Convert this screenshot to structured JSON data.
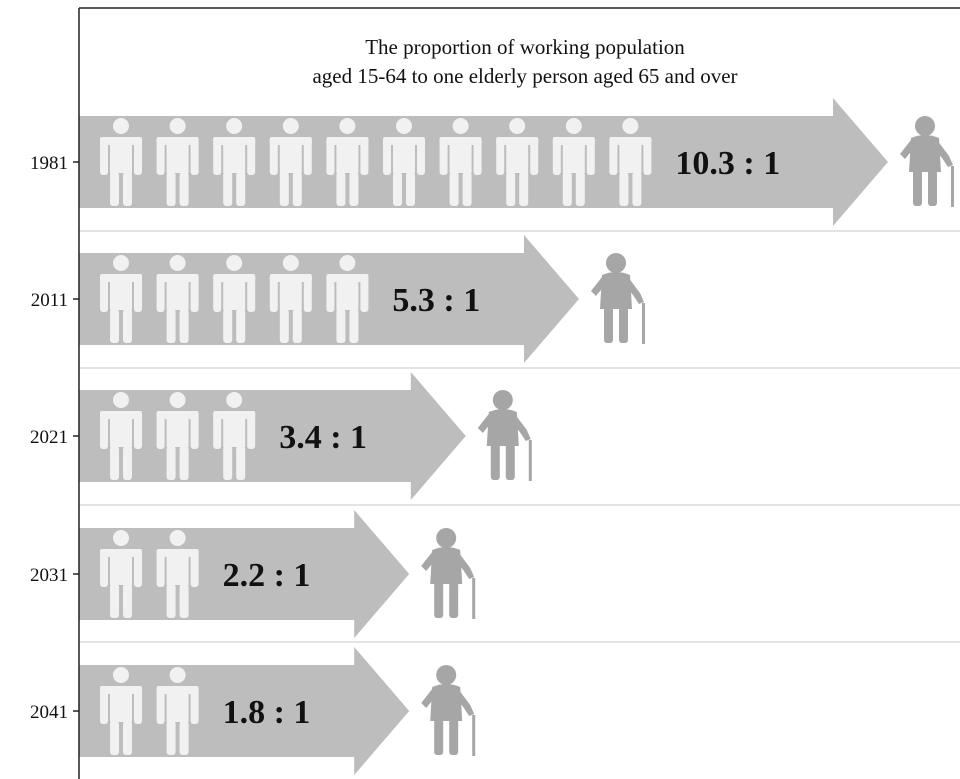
{
  "chart_data": {
    "type": "bar",
    "title": "The proportion of working population aged 15-64 to one elderly person aged 65 and over",
    "title_lines": [
      "The proportion of working population",
      "aged 15-64 to one elderly person aged 65 and over"
    ],
    "categories": [
      "1981",
      "2011",
      "2021",
      "2031",
      "2041"
    ],
    "values": [
      10.3,
      5.3,
      3.4,
      2.2,
      1.8
    ],
    "working_icons": [
      10,
      5,
      3,
      2,
      2
    ],
    "data_labels": [
      "10.3 : 1",
      "5.3 : 1",
      "3.4 : 1",
      "2.2 : 1",
      "1.8 : 1"
    ],
    "orientation": "horizontal",
    "grid": "row separators",
    "legend": "none",
    "colors": {
      "arrow": "#bdbdbd",
      "working_person": "#f1f1f1",
      "elderly_person": "#a6a6a6",
      "divider": "#c8c8c8",
      "frame": "#222222",
      "text": "#111111"
    },
    "icons": {
      "working": "standing-person-icon",
      "elderly": "elderly-person-with-cane-icon"
    }
  }
}
